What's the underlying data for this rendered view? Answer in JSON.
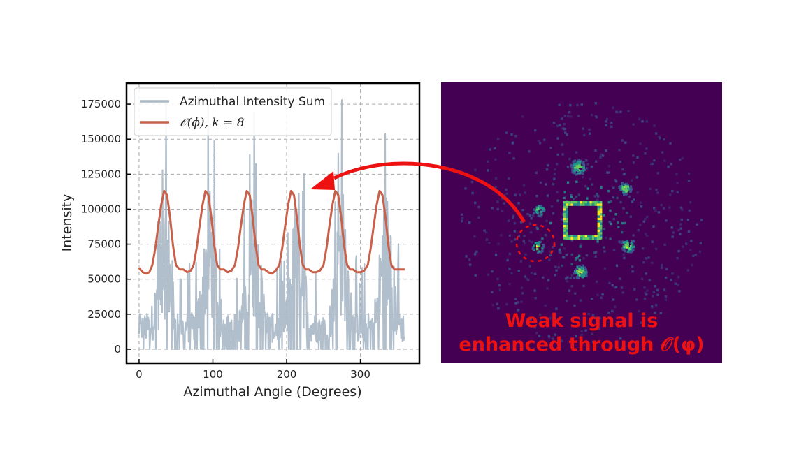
{
  "chart_data": {
    "type": "line",
    "xlabel": "Azimuthal Angle (Degrees)",
    "ylabel": "Intensity",
    "xlim": [
      -17,
      380
    ],
    "ylim": [
      -10000,
      190000
    ],
    "x_ticks": [
      0,
      100,
      200,
      300
    ],
    "y_ticks": [
      0,
      25000,
      50000,
      75000,
      100000,
      125000,
      150000,
      175000
    ],
    "grid": true,
    "legend_position": "top-left",
    "series": [
      {
        "name": "Azimuthal Intensity Sum",
        "color": "#a9b8c6",
        "x_range": [
          0,
          360
        ],
        "y_range": [
          0,
          178000
        ],
        "peak_angles": [
          35,
          95,
          155,
          215,
          275,
          335
        ]
      },
      {
        "name": "𝒪(ϕ),  k = 8",
        "color": "#c9604a",
        "x": [
          0,
          5,
          10,
          14,
          18,
          22,
          26,
          30,
          34,
          38,
          42,
          46,
          50,
          55,
          60,
          65,
          70,
          74,
          78,
          82,
          86,
          90,
          94,
          98,
          102,
          106,
          110,
          115,
          120,
          125,
          130,
          134,
          138,
          142,
          146,
          150,
          154,
          158,
          162,
          166,
          170,
          175,
          180,
          185,
          190,
          194,
          198,
          202,
          206,
          210,
          214,
          218,
          222,
          226,
          230,
          235,
          240,
          245,
          250,
          254,
          258,
          262,
          266,
          270,
          274,
          278,
          282,
          286,
          290,
          295,
          300,
          305,
          310,
          314,
          318,
          322,
          326,
          330,
          334,
          338,
          342,
          346,
          350,
          355,
          360
        ],
        "values": [
          58000,
          55000,
          54000,
          55000,
          60000,
          72000,
          88000,
          103000,
          113000,
          110000,
          94000,
          74000,
          60000,
          57000,
          57000,
          55000,
          56000,
          60000,
          72000,
          88000,
          103000,
          113000,
          110000,
          94000,
          74000,
          60000,
          57000,
          57000,
          55000,
          56000,
          60000,
          72000,
          88000,
          103000,
          113000,
          110000,
          94000,
          74000,
          60000,
          57000,
          57000,
          55000,
          54000,
          56000,
          60000,
          72000,
          88000,
          103000,
          113000,
          110000,
          94000,
          74000,
          60000,
          57000,
          57000,
          55000,
          55000,
          56000,
          60000,
          72000,
          88000,
          103000,
          113000,
          110000,
          94000,
          74000,
          60000,
          57000,
          57000,
          55000,
          55000,
          56000,
          60000,
          72000,
          88000,
          103000,
          113000,
          110000,
          94000,
          74000,
          60000,
          57000,
          57000,
          57000,
          57000
        ]
      }
    ]
  },
  "image_panel": {
    "background_color": "#440154",
    "colormap": [
      "#440154",
      "#3b528b",
      "#21918c",
      "#5ec962",
      "#fde725"
    ]
  },
  "annotation": {
    "line1": "Weak signal is",
    "line2": "enhanced through 𝒪(φ)",
    "color": "#ee1111"
  }
}
